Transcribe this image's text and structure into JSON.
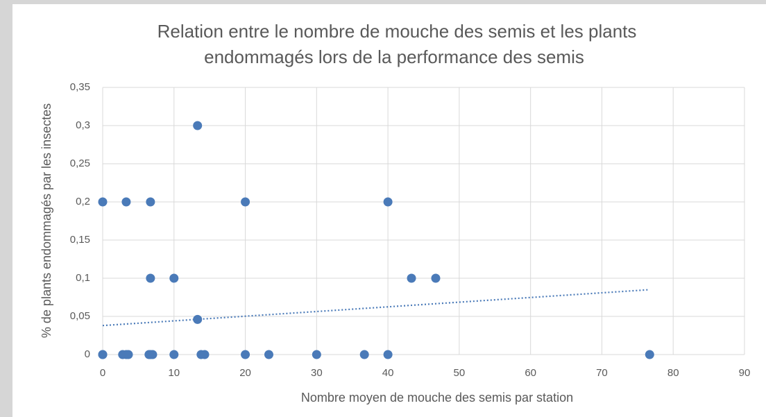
{
  "chart_data": {
    "type": "scatter",
    "title": [
      "Relation entre le nombre de mouche des semis et les plants",
      "endommagés lors de la performance des semis"
    ],
    "x_label": "Nombre moyen de mouche des semis par station",
    "y_label": "% de plants endommagés par les insectes",
    "series": [
      {
        "color": "#4a7ab8",
        "x": [
          0,
          3.3,
          6.7,
          20,
          40,
          13.3,
          6.7,
          10,
          43.3,
          46.7,
          13.3,
          0,
          0,
          2.8,
          3.3,
          3.6,
          6.5,
          6.7,
          7,
          10,
          13.8,
          14.3,
          20,
          23.3,
          30,
          36.7,
          40,
          76.7
        ],
        "values": [
          0.2,
          0.2,
          0.2,
          0.2,
          0.2,
          0.3,
          0.1,
          0.1,
          0.1,
          0.1,
          0.046,
          0,
          0,
          0,
          0,
          0,
          0,
          0,
          0,
          0,
          0,
          0,
          0,
          0,
          0,
          0,
          0,
          0
        ]
      }
    ],
    "trendline": {
      "color": "#4a7ab8",
      "x": [
        0,
        76.7
      ],
      "values": [
        0.038,
        0.085
      ]
    },
    "xlim": [
      0,
      90
    ],
    "xticks": [
      0,
      10,
      20,
      30,
      40,
      50,
      60,
      70,
      80,
      90
    ],
    "ylim": [
      0,
      0.35
    ],
    "yticks": [
      0,
      {
        "value": 0.05,
        "label": "0,05"
      },
      {
        "value": 0.1,
        "label": "0,1"
      },
      {
        "value": 0.15,
        "label": "0,15"
      },
      {
        "value": 0.2,
        "label": "0,2"
      },
      {
        "value": 0.25,
        "label": "0,25"
      },
      {
        "value": 0.3,
        "label": "0,3"
      },
      {
        "value": 0.35,
        "label": "0,35"
      }
    ],
    "grid": true
  }
}
